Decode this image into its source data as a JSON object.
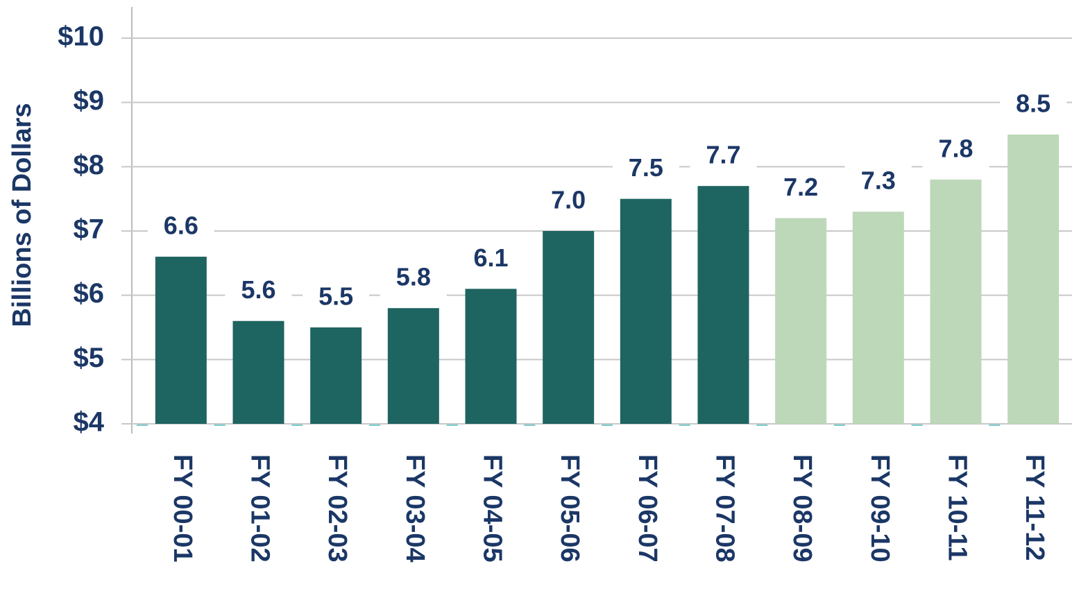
{
  "chart_data": {
    "type": "bar",
    "y_axis_label": "Billions of Dollars",
    "categories": [
      "FY 00-01",
      "FY 01-02",
      "FY 02-03",
      "FY 03-04",
      "FY 04-05",
      "FY 05-06",
      "FY 06-07",
      "FY 07-08",
      "FY 08-09",
      "FY 09-10",
      "FY 10-11",
      "FY 11-12"
    ],
    "values": [
      6.6,
      5.6,
      5.5,
      5.8,
      6.1,
      7.0,
      7.5,
      7.7,
      7.2,
      7.3,
      7.8,
      8.5
    ],
    "value_labels": [
      "6.6",
      "5.6",
      "5.5",
      "5.8",
      "6.1",
      "7.0",
      "7.5",
      "7.7",
      "7.2",
      "7.3",
      "7.8",
      "8.5"
    ],
    "colors": [
      "#1e6461",
      "#1e6461",
      "#1e6461",
      "#1e6461",
      "#1e6461",
      "#1e6461",
      "#1e6461",
      "#1e6461",
      "#bcd8b8",
      "#bcd8b8",
      "#bcd8b8",
      "#bcd8b8"
    ],
    "ylim": [
      4,
      10
    ],
    "yticks": [
      {
        "value": 4,
        "label": "$4"
      },
      {
        "value": 5,
        "label": "$5"
      },
      {
        "value": 6,
        "label": "$6"
      },
      {
        "value": 7,
        "label": "$7"
      },
      {
        "value": 8,
        "label": "$8"
      },
      {
        "value": 9,
        "label": "$9"
      },
      {
        "value": 10,
        "label": "$10"
      }
    ],
    "grid": true
  }
}
